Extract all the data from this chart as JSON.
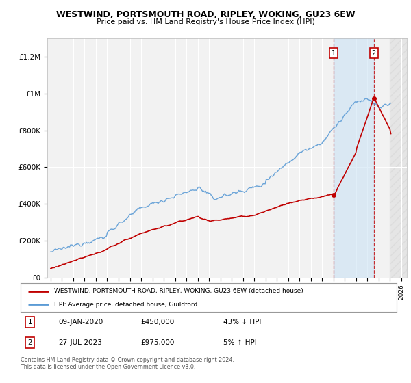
{
  "title": "WESTWIND, PORTSMOUTH ROAD, RIPLEY, WOKING, GU23 6EW",
  "subtitle": "Price paid vs. HM Land Registry's House Price Index (HPI)",
  "ylim": [
    0,
    1300000
  ],
  "xlim_start": 1994.7,
  "xlim_end": 2026.5,
  "background_color": "#ffffff",
  "plot_bg_color": "#f2f2f2",
  "grid_color": "#ffffff",
  "hpi_color": "#5b9bd5",
  "price_color": "#c00000",
  "sale1_x": 2020.03,
  "sale1_y": 450000,
  "sale2_x": 2023.57,
  "sale2_y": 975000,
  "legend_label1": "WESTWIND, PORTSMOUTH ROAD, RIPLEY, WOKING, GU23 6EW (detached house)",
  "legend_label2": "HPI: Average price, detached house, Guildford",
  "annotation1_date": "09-JAN-2020",
  "annotation1_price": "£450,000",
  "annotation1_hpi": "43% ↓ HPI",
  "annotation2_date": "27-JUL-2023",
  "annotation2_price": "£975,000",
  "annotation2_hpi": "5% ↑ HPI",
  "footer": "Contains HM Land Registry data © Crown copyright and database right 2024.\nThis data is licensed under the Open Government Licence v3.0.",
  "ytick_labels": [
    "£0",
    "£200K",
    "£400K",
    "£600K",
    "£800K",
    "£1M",
    "£1.2M"
  ],
  "ytick_values": [
    0,
    200000,
    400000,
    600000,
    800000,
    1000000,
    1200000
  ]
}
